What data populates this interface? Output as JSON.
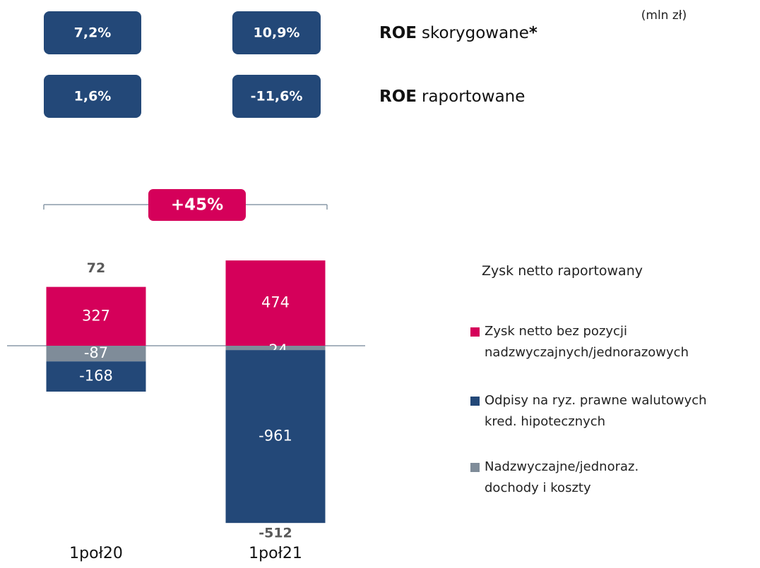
{
  "unit": "(mln zł)",
  "roe": [
    {
      "bold": "ROE",
      "text": "skorygowane",
      "mark": "*",
      "values": [
        "7,2%",
        "10,9%"
      ]
    },
    {
      "bold": "ROE",
      "text": "raportowane",
      "values": [
        "1,6%",
        "-11,6%"
      ]
    }
  ],
  "change": "+45%",
  "chart_data": {
    "type": "stacked_bar",
    "categories": [
      "1poł20",
      "1poł21"
    ],
    "series": [
      {
        "name": "Zysk netto bez pozycji nadzwyczajnych/jednorazowych",
        "color": "#d5005a",
        "values": [
          327,
          474
        ]
      },
      {
        "name": "Odpisy na ryz. prawne walutowych kred. hipotecznych",
        "color": "#234878",
        "values": [
          -168,
          -961
        ]
      },
      {
        "name": "Nadzwyczajne/jednoraz. dochody i koszty",
        "color": "#7f8c99",
        "values": [
          -87,
          -24
        ]
      }
    ],
    "totals_label": "Zysk netto raportowany",
    "totals": [
      72,
      -512
    ]
  }
}
